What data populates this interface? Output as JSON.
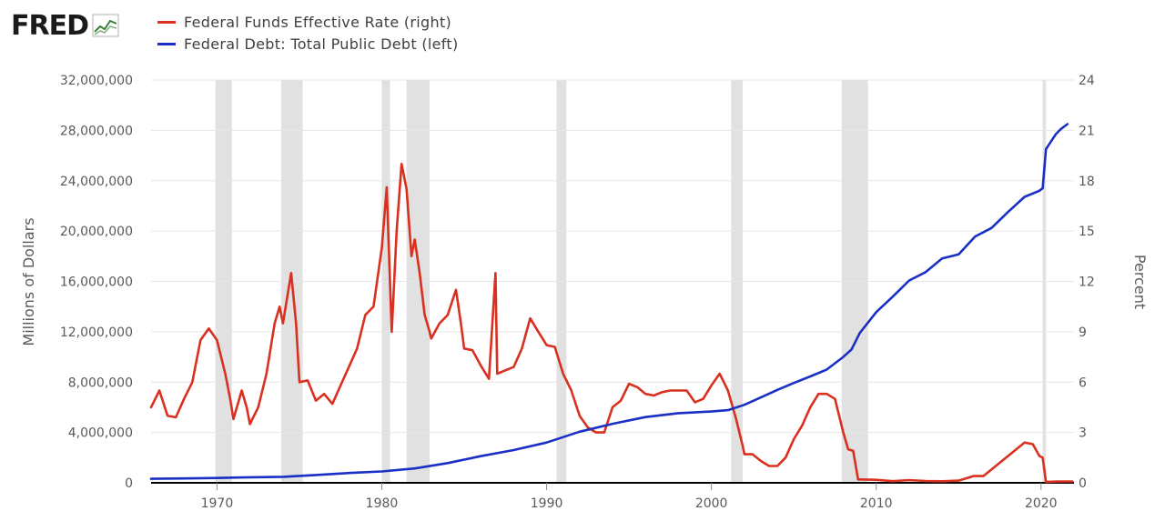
{
  "logo": {
    "text": "FRED"
  },
  "legend": [
    {
      "label": "Federal Funds Effective Rate (right)",
      "color": "#d9301f"
    },
    {
      "label": "Federal Debt: Total Public Debt (left)",
      "color": "#1a2fc4"
    }
  ],
  "chart_data": {
    "type": "line",
    "xlabel": "",
    "ylabel_left": "Millions of Dollars",
    "ylabel_right": "Percent",
    "xlim": [
      1966.0,
      2022.0
    ],
    "ylim_left": [
      0,
      32000000
    ],
    "ylim_right": [
      0,
      24
    ],
    "x_ticks": [
      "1970",
      "1980",
      "1990",
      "2000",
      "2010",
      "2020"
    ],
    "y_left_ticks": [
      "0",
      "4,000,000",
      "8,000,000",
      "12,000,000",
      "16,000,000",
      "20,000,000",
      "24,000,000",
      "28,000,000",
      "32,000,000"
    ],
    "y_right_ticks": [
      "0",
      "3",
      "6",
      "9",
      "12",
      "15",
      "18",
      "21",
      "24"
    ],
    "recessions": [
      [
        1969.9,
        1970.9
      ],
      [
        1973.9,
        1975.2
      ],
      [
        1980.0,
        1980.5
      ],
      [
        1981.5,
        1982.9
      ],
      [
        1990.6,
        1991.2
      ],
      [
        2001.2,
        2001.9
      ],
      [
        2007.9,
        2009.5
      ],
      [
        2020.1,
        2020.3
      ]
    ],
    "series": [
      {
        "name": "Federal Funds Effective Rate (right)",
        "axis": "right",
        "color": "#d9301f",
        "x": [
          1966.0,
          1966.5,
          1967.0,
          1967.5,
          1968.0,
          1968.5,
          1969.0,
          1969.5,
          1970.0,
          1970.5,
          1970.8,
          1971.0,
          1971.5,
          1971.8,
          1972.0,
          1972.5,
          1973.0,
          1973.5,
          1973.8,
          1974.0,
          1974.5,
          1974.8,
          1975.0,
          1975.5,
          1976.0,
          1976.5,
          1977.0,
          1977.5,
          1978.0,
          1978.5,
          1979.0,
          1979.5,
          1980.0,
          1980.3,
          1980.6,
          1980.9,
          1981.2,
          1981.5,
          1981.8,
          1982.0,
          1982.3,
          1982.6,
          1982.9,
          1983.0,
          1983.5,
          1984.0,
          1984.5,
          1984.8,
          1985.0,
          1985.5,
          1986.0,
          1986.5,
          1986.9,
          1987.0,
          1987.5,
          1988.0,
          1988.5,
          1989.0,
          1989.5,
          1990.0,
          1990.5,
          1991.0,
          1991.5,
          1992.0,
          1992.5,
          1993.0,
          1993.5,
          1994.0,
          1994.5,
          1995.0,
          1995.5,
          1996.0,
          1996.5,
          1997.0,
          1997.5,
          1998.0,
          1998.5,
          1999.0,
          1999.5,
          2000.0,
          2000.5,
          2001.0,
          2001.5,
          2001.9,
          2002.0,
          2002.5,
          2003.0,
          2003.5,
          2004.0,
          2004.5,
          2005.0,
          2005.5,
          2006.0,
          2006.5,
          2007.0,
          2007.5,
          2008.0,
          2008.3,
          2008.6,
          2008.9,
          2009.0,
          2010.0,
          2011.0,
          2012.0,
          2013.0,
          2014.0,
          2015.0,
          2015.9,
          2016.5,
          2017.0,
          2017.5,
          2018.0,
          2018.5,
          2019.0,
          2019.5,
          2019.9,
          2020.1,
          2020.3,
          2021.0,
          2021.9
        ],
        "values": [
          4.5,
          5.5,
          4.0,
          3.9,
          5.0,
          6.0,
          8.5,
          9.2,
          8.5,
          6.5,
          5.0,
          3.8,
          5.5,
          4.5,
          3.5,
          4.5,
          6.5,
          9.5,
          10.5,
          9.5,
          12.5,
          9.5,
          6.0,
          6.1,
          4.9,
          5.3,
          4.7,
          5.8,
          6.9,
          8.0,
          10.0,
          10.5,
          14.0,
          17.6,
          9.0,
          15.0,
          19.0,
          17.5,
          13.5,
          14.5,
          12.5,
          10.0,
          9.0,
          8.6,
          9.5,
          10.0,
          11.5,
          9.5,
          8.0,
          7.9,
          7.0,
          6.2,
          12.5,
          6.5,
          6.7,
          6.9,
          8.0,
          9.8,
          9.0,
          8.2,
          8.1,
          6.5,
          5.5,
          4.0,
          3.3,
          3.0,
          3.0,
          4.5,
          4.9,
          5.9,
          5.7,
          5.3,
          5.2,
          5.4,
          5.5,
          5.5,
          5.5,
          4.8,
          5.0,
          5.8,
          6.5,
          5.5,
          3.8,
          2.2,
          1.7,
          1.7,
          1.3,
          1.0,
          1.0,
          1.5,
          2.6,
          3.4,
          4.5,
          5.3,
          5.3,
          5.0,
          3.0,
          2.0,
          1.9,
          0.2,
          0.2,
          0.18,
          0.1,
          0.16,
          0.11,
          0.09,
          0.13,
          0.4,
          0.4,
          0.8,
          1.2,
          1.6,
          2.0,
          2.4,
          2.3,
          1.6,
          1.5,
          0.05,
          0.08,
          0.08
        ]
      },
      {
        "name": "Federal Debt: Total Public Debt (left)",
        "axis": "left",
        "color": "#1a2fc4",
        "x": [
          1966,
          1968,
          1970,
          1972,
          1974,
          1976,
          1978,
          1980,
          1982,
          1984,
          1986,
          1988,
          1990,
          1992,
          1994,
          1996,
          1998,
          2000,
          2001,
          2002,
          2003,
          2004,
          2005,
          2006,
          2007,
          2008,
          2008.5,
          2009,
          2010,
          2011,
          2012,
          2013,
          2014,
          2015,
          2016,
          2017,
          2018,
          2019,
          2019.9,
          2020.1,
          2020.3,
          2020.5,
          2020.9,
          2021.2,
          2021.6
        ],
        "values": [
          320000,
          350000,
          380000,
          440000,
          480000,
          620000,
          780000,
          900000,
          1140000,
          1570000,
          2120000,
          2600000,
          3200000,
          4060000,
          4690000,
          5220000,
          5530000,
          5660000,
          5770000,
          6200000,
          6780000,
          7380000,
          7930000,
          8450000,
          9000000,
          10000000,
          10600000,
          11900000,
          13560000,
          14790000,
          16070000,
          16740000,
          17820000,
          18150000,
          19570000,
          20250000,
          21520000,
          22720000,
          23200000,
          23400000,
          26500000,
          26900000,
          27700000,
          28100000,
          28500000
        ]
      }
    ]
  }
}
